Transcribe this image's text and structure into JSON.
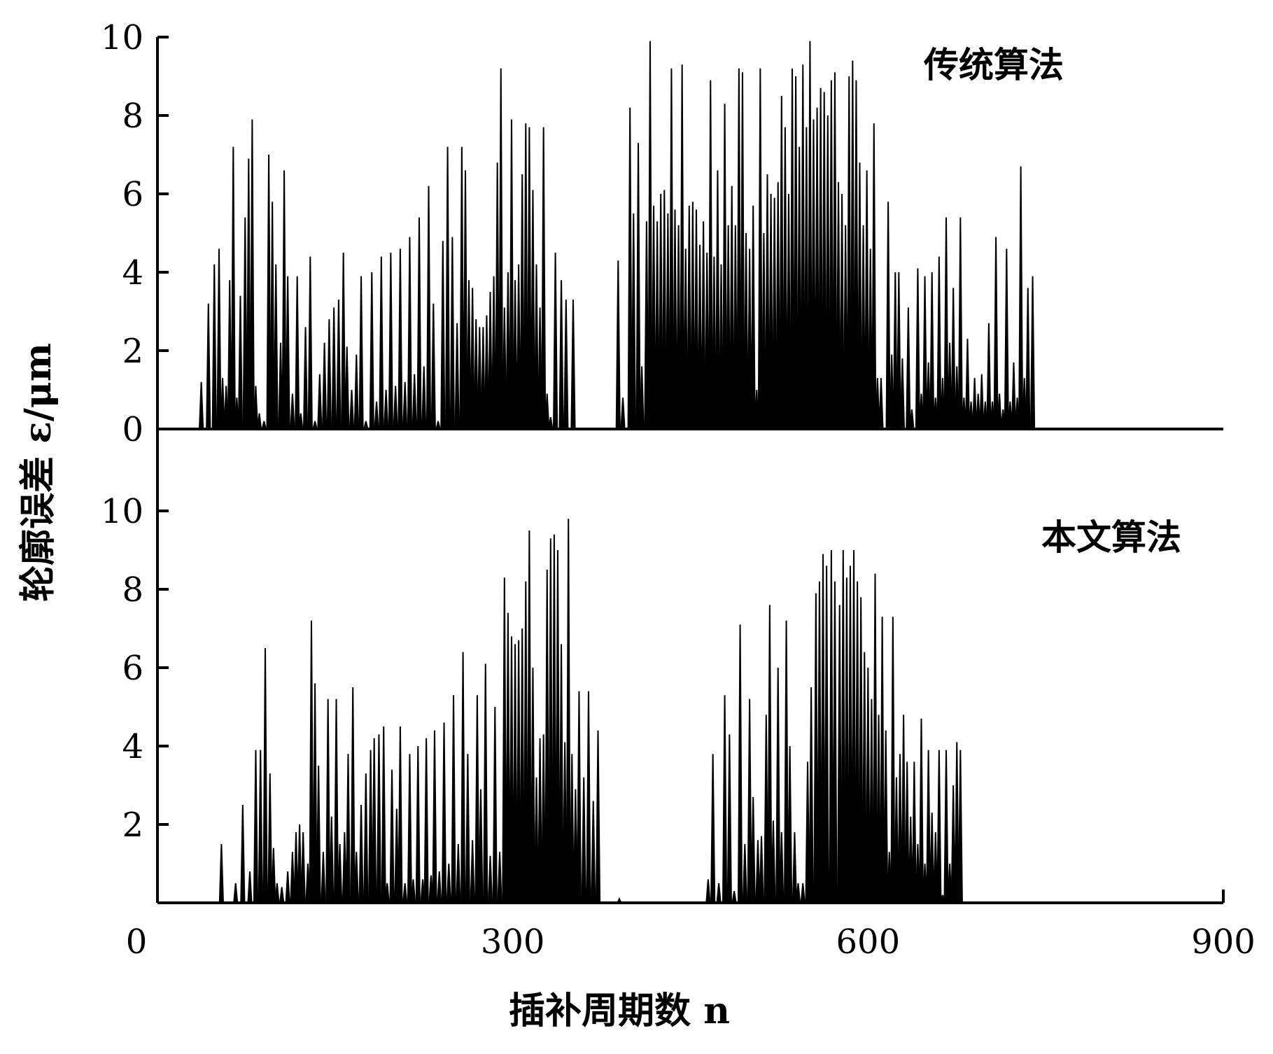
{
  "chart_data": [
    {
      "type": "line",
      "panel": "top",
      "series_label": "传统算法",
      "ylim": [
        0,
        10
      ],
      "yticks": [
        "0",
        "2",
        "4",
        "6",
        "8",
        "10"
      ],
      "xlim": [
        0,
        900
      ],
      "color": "#000000",
      "spikes": [
        [
          37,
          1.2
        ],
        [
          43,
          3.2
        ],
        [
          48,
          4.2
        ],
        [
          52,
          4.6
        ],
        [
          55,
          1.3
        ],
        [
          58,
          1.1
        ],
        [
          61,
          3.8
        ],
        [
          64,
          7.2
        ],
        [
          67,
          0.8
        ],
        [
          70,
          3.4
        ],
        [
          74,
          5.4
        ],
        [
          77,
          6.9
        ],
        [
          80,
          7.9
        ],
        [
          83,
          1.1
        ],
        [
          86,
          0.4
        ],
        [
          90,
          0.2
        ],
        [
          94,
          7.0
        ],
        [
          97,
          5.8
        ],
        [
          100,
          4.2
        ],
        [
          104,
          2.2
        ],
        [
          107,
          6.6
        ],
        [
          110,
          3.9
        ],
        [
          114,
          0.9
        ],
        [
          118,
          3.9
        ],
        [
          121,
          0.4
        ],
        [
          125,
          2.6
        ],
        [
          129,
          4.4
        ],
        [
          133,
          0.2
        ],
        [
          137,
          1.4
        ],
        [
          141,
          2.2
        ],
        [
          145,
          2.8
        ],
        [
          149,
          3.1
        ],
        [
          153,
          3.3
        ],
        [
          157,
          4.5
        ],
        [
          160,
          2.1
        ],
        [
          164,
          1.0
        ],
        [
          168,
          1.9
        ],
        [
          172,
          3.9
        ],
        [
          176,
          0.2
        ],
        [
          181,
          4.0
        ],
        [
          185,
          0.7
        ],
        [
          189,
          4.4
        ],
        [
          193,
          1.0
        ],
        [
          197,
          4.5
        ],
        [
          201,
          1.1
        ],
        [
          205,
          4.6
        ],
        [
          209,
          1.2
        ],
        [
          213,
          4.9
        ],
        [
          217,
          1.4
        ],
        [
          221,
          5.4
        ],
        [
          225,
          1.6
        ],
        [
          229,
          6.2
        ],
        [
          233,
          3.2
        ],
        [
          237,
          0.2
        ],
        [
          241,
          4.8
        ],
        [
          245,
          7.2
        ],
        [
          249,
          4.9
        ],
        [
          253,
          2.7
        ],
        [
          257,
          7.2
        ],
        [
          260,
          6.6
        ],
        [
          263,
          3.8
        ],
        [
          266,
          3.6
        ],
        [
          269,
          2.8
        ],
        [
          272,
          2.6
        ],
        [
          275,
          2.6
        ],
        [
          278,
          2.9
        ],
        [
          281,
          3.5
        ],
        [
          284,
          3.9
        ],
        [
          287,
          6.8
        ],
        [
          290,
          9.2
        ],
        [
          293,
          3.1
        ],
        [
          296,
          4.0
        ],
        [
          299,
          7.9
        ],
        [
          302,
          3.8
        ],
        [
          305,
          4.2
        ],
        [
          308,
          6.5
        ],
        [
          311,
          7.8
        ],
        [
          314,
          7.7
        ],
        [
          317,
          6.1
        ],
        [
          320,
          4.2
        ],
        [
          323,
          3.1
        ],
        [
          326,
          7.7
        ],
        [
          329,
          0.9
        ],
        [
          332,
          0.3
        ],
        [
          336,
          4.5
        ],
        [
          341,
          3.8
        ],
        [
          345,
          3.3
        ],
        [
          351,
          3.3
        ],
        [
          389,
          4.3
        ],
        [
          393,
          0.8
        ],
        [
          399,
          8.2
        ],
        [
          402,
          5.5
        ],
        [
          406,
          7.3
        ],
        [
          409,
          1.6
        ],
        [
          413,
          5.3
        ],
        [
          416,
          9.9
        ],
        [
          419,
          5.7
        ],
        [
          422,
          5.3
        ],
        [
          425,
          6.0
        ],
        [
          428,
          6.1
        ],
        [
          431,
          5.5
        ],
        [
          434,
          9.2
        ],
        [
          437,
          5.6
        ],
        [
          440,
          5.2
        ],
        [
          443,
          9.3
        ],
        [
          446,
          4.6
        ],
        [
          449,
          5.7
        ],
        [
          452,
          5.8
        ],
        [
          455,
          5.6
        ],
        [
          458,
          4.7
        ],
        [
          461,
          5.3
        ],
        [
          464,
          4.5
        ],
        [
          467,
          8.9
        ],
        [
          470,
          4.4
        ],
        [
          473,
          6.6
        ],
        [
          476,
          4.2
        ],
        [
          479,
          8.3
        ],
        [
          482,
          5.2
        ],
        [
          485,
          6.2
        ],
        [
          488,
          5.2
        ],
        [
          491,
          9.2
        ],
        [
          494,
          9.1
        ],
        [
          497,
          5.0
        ],
        [
          500,
          4.6
        ],
        [
          503,
          5.7
        ],
        [
          506,
          1.0
        ],
        [
          509,
          9.2
        ],
        [
          512,
          5.0
        ],
        [
          515,
          6.5
        ],
        [
          518,
          6.0
        ],
        [
          521,
          5.9
        ],
        [
          524,
          6.3
        ],
        [
          527,
          8.5
        ],
        [
          530,
          7.7
        ],
        [
          533,
          6.0
        ],
        [
          536,
          9.2
        ],
        [
          539,
          9.0
        ],
        [
          542,
          7.2
        ],
        [
          545,
          9.3
        ],
        [
          548,
          7.7
        ],
        [
          551,
          9.9
        ],
        [
          554,
          7.9
        ],
        [
          557,
          8.2
        ],
        [
          560,
          8.7
        ],
        [
          563,
          8.6
        ],
        [
          566,
          8.0
        ],
        [
          569,
          8.9
        ],
        [
          572,
          9.1
        ],
        [
          575,
          6.3
        ],
        [
          578,
          6.0
        ],
        [
          581,
          5.2
        ],
        [
          584,
          9.0
        ],
        [
          587,
          9.4
        ],
        [
          590,
          8.9
        ],
        [
          593,
          6.8
        ],
        [
          596,
          5.2
        ],
        [
          599,
          6.6
        ],
        [
          602,
          4.6
        ],
        [
          605,
          7.8
        ],
        [
          608,
          1.3
        ],
        [
          611,
          1.3
        ],
        [
          617,
          5.8
        ],
        [
          620,
          1.9
        ],
        [
          623,
          4.0
        ],
        [
          626,
          4.0
        ],
        [
          629,
          1.8
        ],
        [
          634,
          3.1
        ],
        [
          637,
          0.5
        ],
        [
          642,
          4.1
        ],
        [
          645,
          0.9
        ],
        [
          648,
          3.9
        ],
        [
          651,
          1.7
        ],
        [
          654,
          4.0
        ],
        [
          657,
          0.8
        ],
        [
          660,
          4.4
        ],
        [
          663,
          1.3
        ],
        [
          666,
          5.4
        ],
        [
          669,
          2.2
        ],
        [
          672,
          3.6
        ],
        [
          675,
          1.6
        ],
        [
          678,
          5.4
        ],
        [
          681,
          0.8
        ],
        [
          684,
          2.3
        ],
        [
          687,
          0.7
        ],
        [
          690,
          1.3
        ],
        [
          693,
          0.9
        ],
        [
          696,
          1.4
        ],
        [
          699,
          0.7
        ],
        [
          702,
          2.7
        ],
        [
          705,
          0.7
        ],
        [
          708,
          4.9
        ],
        [
          711,
          0.9
        ],
        [
          714,
          0.5
        ],
        [
          717,
          4.6
        ],
        [
          720,
          0.7
        ],
        [
          723,
          1.7
        ],
        [
          726,
          0.8
        ],
        [
          729,
          6.7
        ],
        [
          732,
          1.3
        ],
        [
          735,
          3.6
        ],
        [
          739,
          3.9
        ]
      ]
    },
    {
      "type": "line",
      "panel": "bottom",
      "series_label": "本文算法",
      "ylim": [
        0,
        10
      ],
      "yticks": [
        "2",
        "4",
        "6",
        "8",
        "10"
      ],
      "xlim": [
        0,
        900
      ],
      "color": "#000000",
      "spikes": [
        [
          54,
          1.5
        ],
        [
          66,
          0.5
        ],
        [
          72,
          2.5
        ],
        [
          78,
          0.8
        ],
        [
          83,
          3.9
        ],
        [
          87,
          3.9
        ],
        [
          91,
          6.5
        ],
        [
          95,
          3.3
        ],
        [
          98,
          1.4
        ],
        [
          101,
          0.5
        ],
        [
          105,
          0.4
        ],
        [
          110,
          0.8
        ],
        [
          114,
          1.3
        ],
        [
          117,
          1.8
        ],
        [
          120,
          2.0
        ],
        [
          123,
          1.8
        ],
        [
          127,
          1.0
        ],
        [
          130,
          7.2
        ],
        [
          133,
          5.6
        ],
        [
          136,
          3.5
        ],
        [
          140,
          1.3
        ],
        [
          144,
          5.2
        ],
        [
          147,
          2.2
        ],
        [
          151,
          5.2
        ],
        [
          154,
          1.5
        ],
        [
          158,
          1.8
        ],
        [
          161,
          3.8
        ],
        [
          165,
          5.5
        ],
        [
          168,
          1.3
        ],
        [
          172,
          2.5
        ],
        [
          176,
          3.3
        ],
        [
          180,
          3.9
        ],
        [
          183,
          4.2
        ],
        [
          187,
          4.3
        ],
        [
          191,
          4.5
        ],
        [
          194,
          0.5
        ],
        [
          198,
          3.4
        ],
        [
          202,
          2.4
        ],
        [
          205,
          4.5
        ],
        [
          209,
          0.5
        ],
        [
          213,
          3.8
        ],
        [
          216,
          0.6
        ],
        [
          220,
          4.0
        ],
        [
          224,
          0.6
        ],
        [
          227,
          4.2
        ],
        [
          231,
          0.7
        ],
        [
          234,
          4.4
        ],
        [
          238,
          0.8
        ],
        [
          242,
          4.6
        ],
        [
          246,
          1.0
        ],
        [
          250,
          5.3
        ],
        [
          254,
          1.5
        ],
        [
          258,
          6.4
        ],
        [
          262,
          3.8
        ],
        [
          266,
          1.6
        ],
        [
          270,
          5.3
        ],
        [
          273,
          2.9
        ],
        [
          277,
          6.1
        ],
        [
          281,
          1.2
        ],
        [
          285,
          5.0
        ],
        [
          289,
          1.3
        ],
        [
          293,
          8.3
        ],
        [
          296,
          7.4
        ],
        [
          299,
          6.8
        ],
        [
          302,
          6.6
        ],
        [
          305,
          6.7
        ],
        [
          308,
          7.0
        ],
        [
          311,
          8.2
        ],
        [
          314,
          9.5
        ],
        [
          317,
          6.0
        ],
        [
          320,
          3.2
        ],
        [
          323,
          4.2
        ],
        [
          326,
          4.3
        ],
        [
          329,
          8.5
        ],
        [
          332,
          9.3
        ],
        [
          335,
          9.4
        ],
        [
          338,
          9.0
        ],
        [
          341,
          6.6
        ],
        [
          344,
          4.1
        ],
        [
          347,
          9.8
        ],
        [
          350,
          3.8
        ],
        [
          353,
          2.9
        ],
        [
          356,
          5.4
        ],
        [
          360,
          3.2
        ],
        [
          364,
          5.4
        ],
        [
          368,
          2.6
        ],
        [
          372,
          4.4
        ],
        [
          390,
          0.1
        ],
        [
          465,
          0.6
        ],
        [
          469,
          3.8
        ],
        [
          474,
          0.5
        ],
        [
          479,
          5.3
        ],
        [
          483,
          4.3
        ],
        [
          487,
          0.3
        ],
        [
          492,
          7.1
        ],
        [
          496,
          1.5
        ],
        [
          500,
          5.2
        ],
        [
          503,
          2.7
        ],
        [
          507,
          1.6
        ],
        [
          510,
          1.7
        ],
        [
          514,
          4.8
        ],
        [
          517,
          7.6
        ],
        [
          520,
          2.1
        ],
        [
          524,
          6.0
        ],
        [
          527,
          1.8
        ],
        [
          531,
          7.2
        ],
        [
          534,
          4.0
        ],
        [
          538,
          1.8
        ],
        [
          541,
          0.5
        ],
        [
          545,
          0.5
        ],
        [
          549,
          3.6
        ],
        [
          552,
          5.5
        ],
        [
          556,
          7.9
        ],
        [
          559,
          8.2
        ],
        [
          562,
          8.9
        ],
        [
          565,
          8.6
        ],
        [
          569,
          9.0
        ],
        [
          572,
          8.2
        ],
        [
          576,
          7.6
        ],
        [
          579,
          9.0
        ],
        [
          582,
          8.3
        ],
        [
          585,
          8.6
        ],
        [
          588,
          9.0
        ],
        [
          591,
          8.2
        ],
        [
          594,
          7.8
        ],
        [
          597,
          6.4
        ],
        [
          600,
          6.0
        ],
        [
          603,
          5.2
        ],
        [
          606,
          8.4
        ],
        [
          609,
          4.8
        ],
        [
          612,
          7.3
        ],
        [
          615,
          4.4
        ],
        [
          618,
          1.3
        ],
        [
          621,
          7.3
        ],
        [
          624,
          3.2
        ],
        [
          627,
          3.8
        ],
        [
          630,
          4.8
        ],
        [
          633,
          3.6
        ],
        [
          636,
          2.2
        ],
        [
          639,
          3.6
        ],
        [
          642,
          1.5
        ],
        [
          645,
          4.7
        ],
        [
          648,
          1.0
        ],
        [
          651,
          3.9
        ],
        [
          654,
          2.3
        ],
        [
          657,
          1.8
        ],
        [
          660,
          3.9
        ],
        [
          663,
          0.2
        ],
        [
          666,
          3.9
        ],
        [
          669,
          1.0
        ],
        [
          672,
          3.0
        ],
        [
          675,
          4.1
        ],
        [
          678,
          3.9
        ]
      ]
    }
  ],
  "x_axis": {
    "ticks": [
      "0",
      "300",
      "600",
      "900"
    ],
    "label": "插补周期数 n"
  },
  "y_axis": {
    "label": "轮廓误差 ε/μm"
  }
}
